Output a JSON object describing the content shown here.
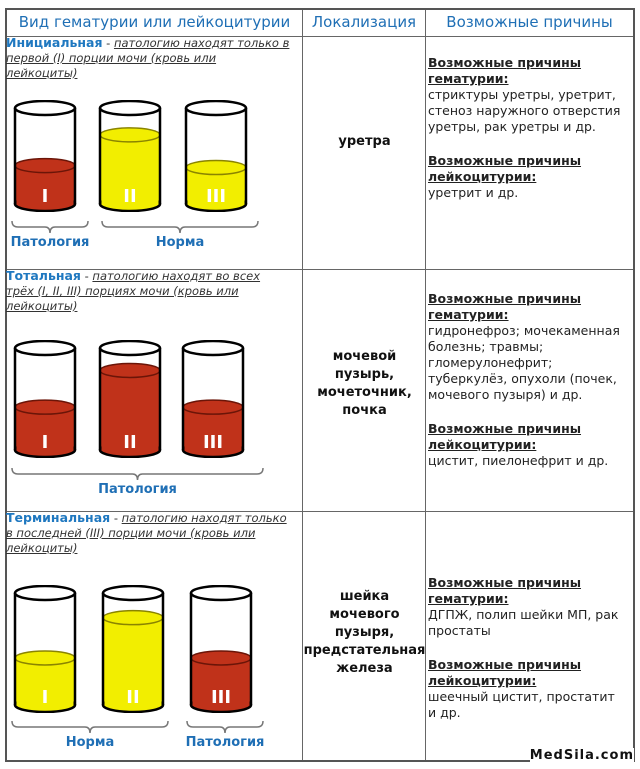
{
  "header": {
    "col1": "Вид гематурии или лейкоцитурии",
    "col2": "Локализация",
    "col3": "Возможные причины"
  },
  "colors": {
    "blood": "#c0321a",
    "urine": "#f2ee00",
    "accent": "#1f6fb5"
  },
  "rows": [
    {
      "kind_title": "Инициальная",
      "kind_desc": "патологию находят только в первой (I) порции мочи (кровь или лейкоциты)",
      "glasses": [
        {
          "numeral": "I",
          "liquid": "blood",
          "fill": 0.4
        },
        {
          "numeral": "II",
          "liquid": "urine",
          "fill": 0.72
        },
        {
          "numeral": "III",
          "liquid": "urine",
          "fill": 0.38
        }
      ],
      "labels": [
        "Патология",
        "Норма"
      ],
      "location": "уретра",
      "hematuria_title": "Возможные причины гематурии:",
      "hematuria_text": "стриктуры уретры, уретрит, стеноз наружного отверстия уретры, рак уретры и др.",
      "leuko_title": "Возможные причины лейкоцитурии:",
      "leuko_text": "уретрит и др."
    },
    {
      "kind_title": "Тотальная",
      "kind_desc": "патологию находят во всех трёх (I, II, III) порциях мочи (кровь или лейкоциты)",
      "glasses": [
        {
          "numeral": "I",
          "liquid": "blood",
          "fill": 0.42
        },
        {
          "numeral": "II",
          "liquid": "blood",
          "fill": 0.78
        },
        {
          "numeral": "III",
          "liquid": "blood",
          "fill": 0.42
        }
      ],
      "labels": [
        "Патология"
      ],
      "location": "мочевой пузырь, мочеточник, почка",
      "hematuria_title": "Возможные причины гематурии:",
      "hematuria_text": "гидронефроз; мочекаменная болезнь; травмы; гломерулонефрит; туберкулёз, опухоли (почек, мочевого пузыря) и др.",
      "leuko_title": "Возможные причины лейкоцитурии:",
      "leuko_text": "цистит, пиелонефрит и др."
    },
    {
      "kind_title": "Терминальная",
      "kind_desc": "патологию находят только в последней (III) порции мочи (кровь или лейкоциты)",
      "glasses": [
        {
          "numeral": "I",
          "liquid": "urine",
          "fill": 0.42
        },
        {
          "numeral": "II",
          "liquid": "urine",
          "fill": 0.78
        },
        {
          "numeral": "III",
          "liquid": "blood",
          "fill": 0.42
        }
      ],
      "labels": [
        "Норма",
        "Патология"
      ],
      "location": "шейка мочевого пузыря, предстательная железа",
      "hematuria_title": "Возможные причины гематурии:",
      "hematuria_text": "ДГПЖ, полип шейки МП, рак простаты",
      "leuko_title": "Возможные причины лейкоцитурии:",
      "leuko_text": "шеечный цистит, простатит и др."
    }
  ],
  "watermark": "MedSila.com"
}
